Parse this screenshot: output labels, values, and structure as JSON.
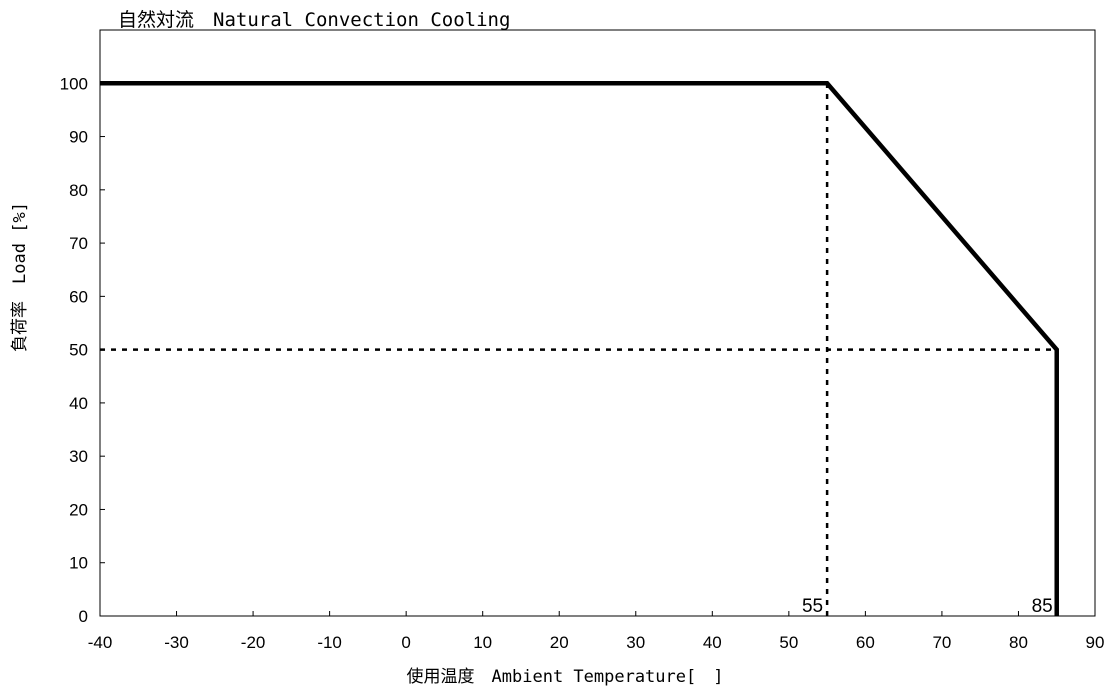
{
  "chart_data": {
    "type": "line",
    "title": "自然対流　Natural Convection Cooling",
    "xlabel": "使用温度　Ambient Temperature[　]",
    "ylabel": "負荷率　Load [%]",
    "xlim": [
      -40,
      90
    ],
    "ylim": [
      0,
      110
    ],
    "x_ticks": [
      -40,
      -30,
      -20,
      -10,
      0,
      10,
      20,
      30,
      40,
      50,
      60,
      70,
      80,
      90
    ],
    "y_ticks": [
      0,
      10,
      20,
      30,
      40,
      50,
      60,
      70,
      80,
      90,
      100
    ],
    "grid": false,
    "series": [
      {
        "x": [
          -40,
          55,
          85,
          85
        ],
        "y": [
          100,
          100,
          50,
          0
        ],
        "color": "#000000",
        "style": "solid"
      }
    ],
    "reference_lines": [
      {
        "x": [
          55,
          55
        ],
        "y": [
          0,
          100
        ],
        "style": "dotted"
      },
      {
        "x": [
          -40,
          85
        ],
        "y": [
          50,
          50
        ],
        "style": "dotted"
      }
    ],
    "annotations": [
      {
        "text": "55",
        "x": 55,
        "y": 0
      },
      {
        "text": "85",
        "x": 85,
        "y": 0
      }
    ]
  }
}
